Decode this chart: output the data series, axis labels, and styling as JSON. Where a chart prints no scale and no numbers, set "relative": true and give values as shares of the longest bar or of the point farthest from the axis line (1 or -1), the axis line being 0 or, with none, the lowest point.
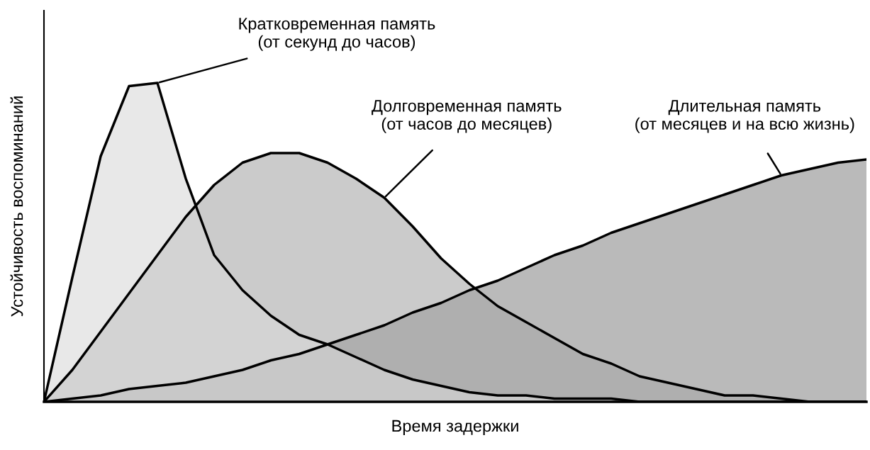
{
  "chart_data": {
    "type": "area",
    "relative": true,
    "xlabel": "Время задержки",
    "ylabel": "Устойчивость воспоминаний",
    "categories": [
      null,
      null,
      null,
      null,
      null,
      null,
      null,
      null,
      null,
      null,
      null,
      null,
      null,
      null,
      null,
      null,
      null,
      null,
      null,
      null,
      null,
      null,
      null,
      null,
      null,
      null,
      null,
      null,
      null,
      null
    ],
    "series": [
      {
        "name": "Длительная память\n(от месяцев и на всю жизнь)",
        "color": "#8c8c8c",
        "values": [
          0,
          0.01,
          0.02,
          0.04,
          0.05,
          0.06,
          0.08,
          0.1,
          0.13,
          0.15,
          0.18,
          0.21,
          0.24,
          0.28,
          0.31,
          0.35,
          0.38,
          0.42,
          0.46,
          0.49,
          0.53,
          0.56,
          0.59,
          0.62,
          0.65,
          0.68,
          0.71,
          0.73,
          0.75,
          0.76
        ]
      },
      {
        "name": "Долговременная память\n(от часов до месяцев)",
        "color": "#a8a8a8",
        "values": [
          0,
          0.1,
          0.22,
          0.34,
          0.46,
          0.58,
          0.68,
          0.75,
          0.78,
          0.78,
          0.75,
          0.7,
          0.64,
          0.55,
          0.45,
          0.37,
          0.3,
          0.25,
          0.2,
          0.15,
          0.12,
          0.08,
          0.06,
          0.04,
          0.02,
          0.02,
          0.01,
          0,
          0,
          0
        ]
      },
      {
        "name": "Кратковременная память\n(от секунд до часов)",
        "color": "#d9d9d9",
        "values": [
          0,
          0.39,
          0.77,
          0.99,
          1.0,
          0.7,
          0.46,
          0.35,
          0.27,
          0.21,
          0.18,
          0.14,
          0.1,
          0.07,
          0.05,
          0.03,
          0.02,
          0.02,
          0.01,
          0.01,
          0.01,
          0,
          0,
          0,
          0,
          0,
          0,
          0,
          0,
          0
        ]
      }
    ]
  }
}
